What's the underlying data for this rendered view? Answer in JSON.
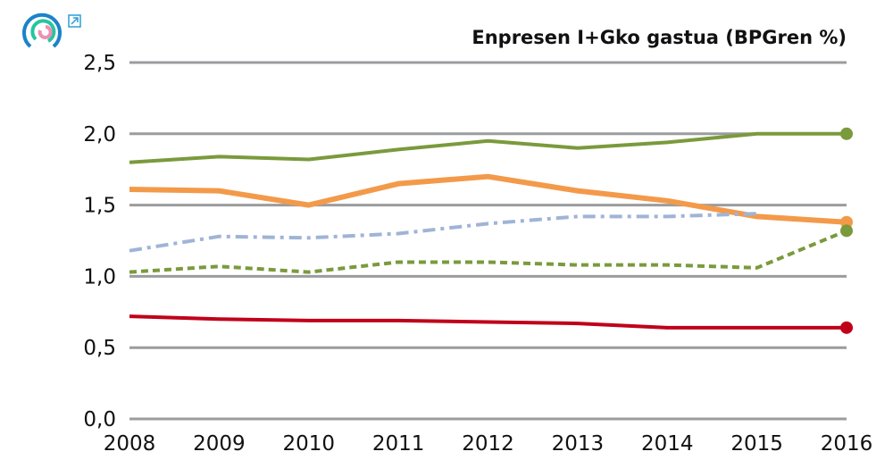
{
  "chart_data": {
    "type": "line",
    "title": "Enpresen I+Gko gastua (BPGren %)",
    "xlabel": "",
    "ylabel": "",
    "categories": [
      "2008",
      "2009",
      "2010",
      "2011",
      "2012",
      "2013",
      "2014",
      "2015",
      "2016"
    ],
    "ylim": [
      0,
      2.5
    ],
    "yticks": [
      "0,0",
      "0,5",
      "1,0",
      "1,5",
      "2,0",
      "2,5"
    ],
    "grid": true,
    "series": [
      {
        "color": "#7a9a3c",
        "style": "solid",
        "width": 4,
        "end_marker": true,
        "values": [
          1.8,
          1.84,
          1.82,
          1.89,
          1.95,
          1.9,
          1.94,
          2.0,
          2.0
        ]
      },
      {
        "color": "#f39a4a",
        "style": "solid",
        "width": 6,
        "end_marker": true,
        "values": [
          1.61,
          1.6,
          1.5,
          1.65,
          1.7,
          1.6,
          1.53,
          1.42,
          1.38
        ]
      },
      {
        "color": "#9fb4d6",
        "style": "dashdot",
        "width": 4,
        "end_marker": false,
        "values": [
          1.18,
          1.28,
          1.27,
          1.3,
          1.37,
          1.42,
          1.42,
          1.44,
          null
        ]
      },
      {
        "color": "#7a9a3c",
        "style": "dashed",
        "width": 4,
        "end_marker": true,
        "values": [
          1.03,
          1.07,
          1.03,
          1.1,
          1.1,
          1.08,
          1.08,
          1.06,
          1.32
        ]
      },
      {
        "color": "#c0001a",
        "style": "solid",
        "width": 4,
        "end_marker": true,
        "values": [
          0.72,
          0.7,
          0.69,
          0.69,
          0.68,
          0.67,
          0.64,
          0.64,
          0.64
        ]
      }
    ]
  },
  "icons": {
    "logo": "circular-logo-icon",
    "external": "external-link-icon"
  }
}
